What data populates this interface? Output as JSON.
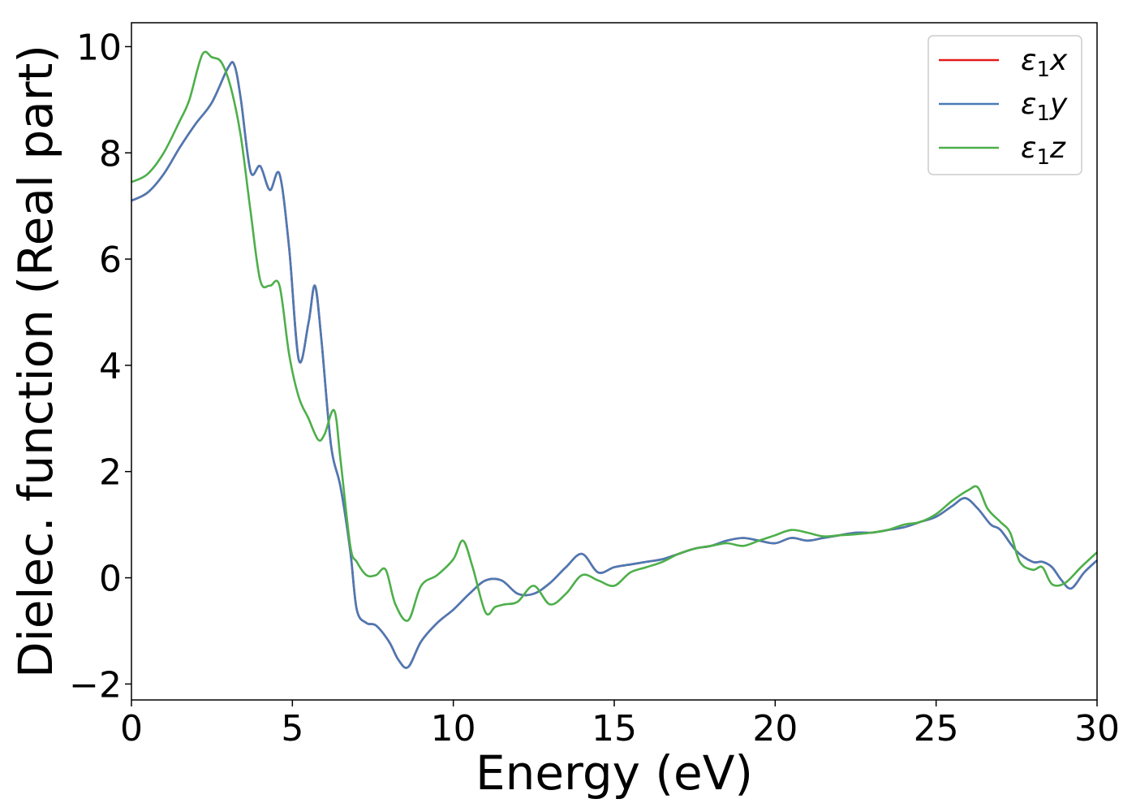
{
  "chart_data": {
    "type": "line",
    "xlabel": "Energy (eV)",
    "ylabel": "Dielec. function (Real part)",
    "xlim": [
      0,
      30
    ],
    "ylim": [
      -2.3,
      10.45
    ],
    "xticks": [
      0,
      5,
      10,
      15,
      20,
      25,
      30
    ],
    "xtick_labels": [
      "0",
      "5",
      "10",
      "15",
      "20",
      "25",
      "30"
    ],
    "yticks": [
      -2,
      0,
      2,
      4,
      6,
      8,
      10
    ],
    "ytick_labels": [
      "−2",
      "0",
      "2",
      "4",
      "6",
      "8",
      "10"
    ],
    "grid": false,
    "legend_position": "top-right",
    "series": [
      {
        "name": "ε₁x",
        "legend_base": "ε",
        "legend_sub": "1",
        "legend_suffix": "x",
        "color": "#e41a1c",
        "x": [
          0,
          0.5,
          1.0,
          1.5,
          2.0,
          2.5,
          3.0,
          3.2,
          3.4,
          3.7,
          4.0,
          4.3,
          4.6,
          4.9,
          5.2,
          5.5,
          5.7,
          5.9,
          6.2,
          6.5,
          6.8,
          7.0,
          7.3,
          7.6,
          8.0,
          8.3,
          8.6,
          9.0,
          9.5,
          10.0,
          10.5,
          11.0,
          11.5,
          12.0,
          12.5,
          13.0,
          13.5,
          14.0,
          14.5,
          15.0,
          15.5,
          16.0,
          16.5,
          17.0,
          17.5,
          18.0,
          18.5,
          19.0,
          19.5,
          20.0,
          20.5,
          21.0,
          21.5,
          22.0,
          22.5,
          23.0,
          23.5,
          24.0,
          24.5,
          25.0,
          25.5,
          25.9,
          26.3,
          26.7,
          27.0,
          27.5,
          28.0,
          28.3,
          28.6,
          28.9,
          29.2,
          29.6,
          30.0
        ],
        "y": [
          7.1,
          7.25,
          7.6,
          8.1,
          8.55,
          8.95,
          9.6,
          9.65,
          9.0,
          7.65,
          7.75,
          7.3,
          7.6,
          6.2,
          4.1,
          4.8,
          5.5,
          4.5,
          2.5,
          1.7,
          0.5,
          -0.6,
          -0.85,
          -0.9,
          -1.2,
          -1.55,
          -1.68,
          -1.2,
          -0.85,
          -0.6,
          -0.3,
          -0.05,
          -0.05,
          -0.3,
          -0.3,
          -0.1,
          0.2,
          0.45,
          0.1,
          0.2,
          0.25,
          0.3,
          0.35,
          0.45,
          0.55,
          0.6,
          0.7,
          0.75,
          0.7,
          0.65,
          0.75,
          0.7,
          0.75,
          0.8,
          0.85,
          0.85,
          0.9,
          0.95,
          1.05,
          1.15,
          1.35,
          1.5,
          1.3,
          1.0,
          0.9,
          0.5,
          0.3,
          0.3,
          0.2,
          -0.05,
          -0.2,
          0.1,
          0.33
        ]
      },
      {
        "name": "ε₁y",
        "legend_base": "ε",
        "legend_sub": "1",
        "legend_suffix": "y",
        "color": "#4a7ab5",
        "x": [
          0,
          0.5,
          1.0,
          1.5,
          2.0,
          2.5,
          3.0,
          3.2,
          3.4,
          3.7,
          4.0,
          4.3,
          4.6,
          4.9,
          5.2,
          5.5,
          5.7,
          5.9,
          6.2,
          6.5,
          6.8,
          7.0,
          7.3,
          7.6,
          8.0,
          8.3,
          8.6,
          9.0,
          9.5,
          10.0,
          10.5,
          11.0,
          11.5,
          12.0,
          12.5,
          13.0,
          13.5,
          14.0,
          14.5,
          15.0,
          15.5,
          16.0,
          16.5,
          17.0,
          17.5,
          18.0,
          18.5,
          19.0,
          19.5,
          20.0,
          20.5,
          21.0,
          21.5,
          22.0,
          22.5,
          23.0,
          23.5,
          24.0,
          24.5,
          25.0,
          25.5,
          25.9,
          26.3,
          26.7,
          27.0,
          27.5,
          28.0,
          28.3,
          28.6,
          28.9,
          29.2,
          29.6,
          30.0
        ],
        "y": [
          7.1,
          7.25,
          7.6,
          8.1,
          8.55,
          8.95,
          9.6,
          9.65,
          9.0,
          7.65,
          7.75,
          7.3,
          7.6,
          6.2,
          4.1,
          4.8,
          5.5,
          4.5,
          2.5,
          1.7,
          0.5,
          -0.6,
          -0.85,
          -0.9,
          -1.2,
          -1.55,
          -1.68,
          -1.2,
          -0.85,
          -0.6,
          -0.3,
          -0.05,
          -0.05,
          -0.3,
          -0.3,
          -0.1,
          0.2,
          0.45,
          0.1,
          0.2,
          0.25,
          0.3,
          0.35,
          0.45,
          0.55,
          0.6,
          0.7,
          0.75,
          0.7,
          0.65,
          0.75,
          0.7,
          0.75,
          0.8,
          0.85,
          0.85,
          0.9,
          0.95,
          1.05,
          1.15,
          1.35,
          1.5,
          1.3,
          1.0,
          0.9,
          0.5,
          0.3,
          0.3,
          0.2,
          -0.05,
          -0.2,
          0.1,
          0.33
        ]
      },
      {
        "name": "ε₁z",
        "legend_base": "ε",
        "legend_sub": "1",
        "legend_suffix": "z",
        "color": "#4daf4a",
        "x": [
          0,
          0.5,
          1.0,
          1.5,
          1.8,
          2.2,
          2.5,
          2.8,
          3.1,
          3.4,
          3.7,
          4.0,
          4.3,
          4.6,
          4.9,
          5.2,
          5.5,
          5.8,
          6.0,
          6.3,
          6.5,
          6.8,
          7.0,
          7.3,
          7.6,
          7.9,
          8.2,
          8.6,
          9.0,
          9.5,
          10.0,
          10.3,
          10.6,
          11.0,
          11.3,
          11.6,
          12.0,
          12.5,
          13.0,
          13.5,
          14.0,
          14.5,
          15.0,
          15.5,
          16.0,
          16.5,
          17.0,
          17.5,
          18.0,
          18.5,
          19.0,
          19.5,
          20.0,
          20.5,
          21.0,
          21.5,
          22.0,
          22.5,
          23.0,
          23.5,
          24.0,
          24.5,
          25.0,
          25.5,
          26.0,
          26.3,
          26.6,
          27.0,
          27.3,
          27.6,
          28.0,
          28.3,
          28.6,
          29.0,
          29.5,
          30.0
        ],
        "y": [
          7.45,
          7.6,
          8.0,
          8.6,
          9.0,
          9.85,
          9.8,
          9.7,
          9.2,
          8.3,
          6.9,
          5.6,
          5.5,
          5.5,
          4.2,
          3.4,
          3.0,
          2.6,
          2.7,
          3.15,
          2.2,
          0.6,
          0.3,
          0.05,
          0.05,
          0.15,
          -0.5,
          -0.8,
          -0.15,
          0.05,
          0.35,
          0.7,
          0.2,
          -0.65,
          -0.55,
          -0.5,
          -0.45,
          -0.15,
          -0.5,
          -0.3,
          0.05,
          -0.05,
          -0.15,
          0.1,
          0.2,
          0.3,
          0.45,
          0.55,
          0.6,
          0.65,
          0.6,
          0.7,
          0.8,
          0.9,
          0.85,
          0.78,
          0.8,
          0.82,
          0.85,
          0.9,
          1.0,
          1.05,
          1.2,
          1.45,
          1.65,
          1.7,
          1.3,
          1.05,
          0.85,
          0.3,
          0.15,
          0.2,
          -0.12,
          -0.1,
          0.2,
          0.48
        ]
      }
    ]
  }
}
